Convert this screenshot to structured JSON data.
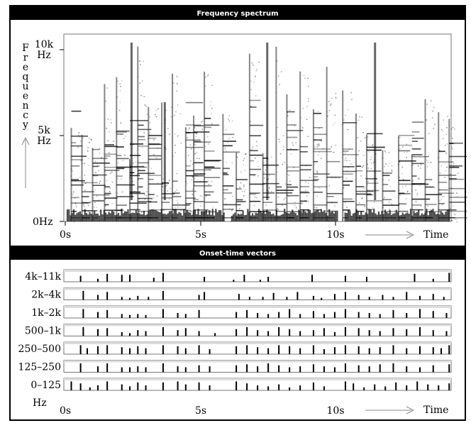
{
  "panels": {
    "spectrum_title": "Frequency spectrum",
    "onset_title": "Onset-time vectors"
  },
  "chart_data": [
    {
      "type": "heatmap",
      "title": "Frequency spectrum",
      "xlabel": "Time",
      "ylabel": "Frequency",
      "x_ticks": [
        "0s",
        "5s",
        "10s"
      ],
      "y_ticks": [
        "0Hz",
        "5k Hz",
        "10k Hz"
      ],
      "xlim": [
        0,
        14.5
      ],
      "ylim": [
        0,
        11000
      ],
      "grid": false,
      "note_onsets_s": [
        0.2,
        0.6,
        1.0,
        1.45,
        1.9,
        2.4,
        2.7,
        3.1,
        3.6,
        4.0,
        4.5,
        4.8,
        5.2,
        5.9,
        6.4,
        6.9,
        7.4,
        7.9,
        8.3,
        8.8,
        9.3,
        9.8,
        10.4,
        10.9,
        11.3,
        11.9,
        12.5,
        13.0,
        13.5,
        14.0,
        14.4
      ]
    },
    {
      "type": "bar",
      "title": "Onset-time vectors",
      "xlabel": "Time",
      "x_ticks": [
        "0s",
        "5s",
        "10s"
      ],
      "xlim": [
        0,
        14.5
      ],
      "bands": [
        "4k–11k",
        "2k–4k",
        "1k–2k",
        "500–1k",
        "250–500",
        "125–250",
        "0–125"
      ],
      "band_unit": "Hz",
      "series": [
        {
          "values": [
            [
              0.55,
              0.6
            ],
            [
              1.2,
              0.3
            ],
            [
              1.55,
              0.8
            ],
            [
              2.1,
              0.7
            ],
            [
              2.4,
              0.7
            ],
            [
              3.3,
              0.4
            ],
            [
              3.65,
              0.9
            ],
            [
              5.2,
              0.5
            ],
            [
              6.3,
              0.2
            ],
            [
              6.7,
              0.7
            ],
            [
              7.3,
              0.2
            ],
            [
              7.6,
              0.5
            ],
            [
              9.25,
              0.7
            ],
            [
              10.5,
              0.6
            ],
            [
              11.3,
              0.5
            ],
            [
              13.1,
              0.8
            ],
            [
              13.8,
              0.3
            ],
            [
              14.4,
              0.9
            ]
          ]
        },
        {
          "values": [
            [
              0.65,
              0.9
            ],
            [
              1.2,
              0.5
            ],
            [
              1.55,
              0.8
            ],
            [
              2.1,
              0.3
            ],
            [
              2.4,
              0.2
            ],
            [
              2.7,
              0.4
            ],
            [
              3.1,
              0.3
            ],
            [
              3.65,
              0.9
            ],
            [
              5.0,
              0.5
            ],
            [
              5.2,
              0.8
            ],
            [
              6.5,
              0.6
            ],
            [
              6.9,
              0.3
            ],
            [
              7.4,
              0.3
            ],
            [
              7.8,
              0.7
            ],
            [
              8.3,
              0.3
            ],
            [
              8.7,
              0.8
            ],
            [
              9.3,
              0.4
            ],
            [
              9.6,
              0.2
            ],
            [
              10.1,
              0.6
            ],
            [
              10.5,
              0.8
            ],
            [
              11.0,
              0.5
            ],
            [
              11.4,
              0.3
            ],
            [
              11.9,
              0.5
            ],
            [
              12.3,
              0.3
            ],
            [
              12.8,
              0.8
            ],
            [
              13.3,
              0.4
            ],
            [
              13.8,
              0.6
            ],
            [
              14.2,
              0.3
            ]
          ]
        },
        {
          "values": [
            [
              0.65,
              0.9
            ],
            [
              1.2,
              0.6
            ],
            [
              1.55,
              0.8
            ],
            [
              2.1,
              0.4
            ],
            [
              2.4,
              0.3
            ],
            [
              2.7,
              0.4
            ],
            [
              3.0,
              0.3
            ],
            [
              3.65,
              0.9
            ],
            [
              4.2,
              0.5
            ],
            [
              4.5,
              0.4
            ],
            [
              5.0,
              0.8
            ],
            [
              6.4,
              0.6
            ],
            [
              6.8,
              0.8
            ],
            [
              7.2,
              0.5
            ],
            [
              7.6,
              0.4
            ],
            [
              8.0,
              0.6
            ],
            [
              8.4,
              0.9
            ],
            [
              8.8,
              0.4
            ],
            [
              9.3,
              0.7
            ],
            [
              9.7,
              0.4
            ],
            [
              10.1,
              0.6
            ],
            [
              10.5,
              0.9
            ],
            [
              11.0,
              0.6
            ],
            [
              11.4,
              0.5
            ],
            [
              11.8,
              0.4
            ],
            [
              12.3,
              0.8
            ],
            [
              12.8,
              0.5
            ],
            [
              13.3,
              0.9
            ],
            [
              13.8,
              0.7
            ],
            [
              14.3,
              0.5
            ]
          ]
        },
        {
          "values": [
            [
              0.65,
              0.9
            ],
            [
              1.2,
              0.7
            ],
            [
              1.55,
              0.8
            ],
            [
              2.1,
              0.4
            ],
            [
              2.4,
              0.3
            ],
            [
              2.7,
              0.6
            ],
            [
              3.0,
              0.5
            ],
            [
              3.65,
              0.9
            ],
            [
              4.2,
              0.6
            ],
            [
              4.5,
              0.8
            ],
            [
              5.0,
              0.5
            ],
            [
              5.6,
              0.3
            ],
            [
              6.4,
              0.7
            ],
            [
              6.8,
              0.9
            ],
            [
              7.2,
              0.6
            ],
            [
              7.6,
              0.5
            ],
            [
              8.0,
              0.9
            ],
            [
              8.4,
              0.7
            ],
            [
              8.8,
              0.5
            ],
            [
              9.3,
              0.6
            ],
            [
              9.7,
              0.8
            ],
            [
              10.1,
              0.4
            ],
            [
              10.5,
              0.9
            ],
            [
              11.0,
              0.8
            ],
            [
              11.4,
              0.6
            ],
            [
              11.8,
              0.5
            ],
            [
              12.3,
              0.8
            ],
            [
              12.8,
              0.7
            ],
            [
              13.3,
              0.9
            ],
            [
              13.8,
              0.6
            ],
            [
              14.3,
              0.5
            ]
          ]
        },
        {
          "values": [
            [
              0.55,
              0.9
            ],
            [
              0.8,
              0.6
            ],
            [
              1.2,
              0.8
            ],
            [
              1.55,
              0.9
            ],
            [
              2.1,
              0.7
            ],
            [
              2.4,
              0.6
            ],
            [
              2.7,
              0.8
            ],
            [
              3.0,
              0.6
            ],
            [
              3.65,
              0.9
            ],
            [
              4.2,
              0.8
            ],
            [
              4.5,
              0.6
            ],
            [
              5.0,
              0.9
            ],
            [
              5.4,
              0.5
            ],
            [
              6.4,
              0.8
            ],
            [
              6.8,
              0.9
            ],
            [
              7.2,
              0.7
            ],
            [
              7.6,
              0.6
            ],
            [
              8.0,
              0.9
            ],
            [
              8.4,
              0.8
            ],
            [
              8.8,
              0.6
            ],
            [
              9.3,
              0.9
            ],
            [
              9.7,
              0.5
            ],
            [
              10.1,
              0.7
            ],
            [
              10.5,
              0.9
            ],
            [
              11.0,
              0.8
            ],
            [
              11.4,
              0.6
            ],
            [
              11.8,
              0.7
            ],
            [
              12.3,
              0.9
            ],
            [
              12.8,
              0.6
            ],
            [
              13.3,
              0.8
            ],
            [
              13.8,
              0.7
            ],
            [
              14.1,
              0.6
            ],
            [
              14.4,
              0.9
            ]
          ]
        },
        {
          "values": [
            [
              0.55,
              0.9
            ],
            [
              1.2,
              0.6
            ],
            [
              1.55,
              0.9
            ],
            [
              2.1,
              0.5
            ],
            [
              2.4,
              0.5
            ],
            [
              2.7,
              0.6
            ],
            [
              3.0,
              0.5
            ],
            [
              3.65,
              0.9
            ],
            [
              4.2,
              0.6
            ],
            [
              4.5,
              0.5
            ],
            [
              5.0,
              0.7
            ],
            [
              5.4,
              0.6
            ],
            [
              6.4,
              0.7
            ],
            [
              6.8,
              0.8
            ],
            [
              7.2,
              0.6
            ],
            [
              7.6,
              0.9
            ],
            [
              8.0,
              0.7
            ],
            [
              8.4,
              0.5
            ],
            [
              8.8,
              0.6
            ],
            [
              9.3,
              0.8
            ],
            [
              9.7,
              0.6
            ],
            [
              10.1,
              0.5
            ],
            [
              10.5,
              0.9
            ],
            [
              11.0,
              0.7
            ],
            [
              11.4,
              0.6
            ],
            [
              11.8,
              0.8
            ],
            [
              12.3,
              0.9
            ],
            [
              12.8,
              0.6
            ],
            [
              13.3,
              0.5
            ],
            [
              13.8,
              0.7
            ],
            [
              14.4,
              0.8
            ]
          ]
        },
        {
          "values": [
            [
              0.2,
              0.9
            ],
            [
              0.55,
              0.7
            ],
            [
              0.9,
              0.3
            ],
            [
              1.2,
              0.5
            ],
            [
              1.55,
              0.9
            ],
            [
              2.1,
              0.6
            ],
            [
              2.4,
              0.4
            ],
            [
              2.7,
              0.8
            ],
            [
              3.0,
              0.5
            ],
            [
              3.65,
              0.8
            ],
            [
              4.2,
              0.9
            ],
            [
              4.5,
              0.6
            ],
            [
              5.0,
              0.8
            ],
            [
              5.4,
              0.5
            ],
            [
              6.4,
              0.9
            ],
            [
              6.8,
              0.7
            ],
            [
              7.2,
              0.5
            ],
            [
              7.6,
              0.4
            ],
            [
              8.0,
              0.6
            ],
            [
              8.4,
              0.3
            ],
            [
              8.8,
              0.5
            ],
            [
              9.3,
              0.8
            ],
            [
              9.7,
              0.4
            ],
            [
              10.5,
              0.9
            ],
            [
              10.8,
              0.7
            ],
            [
              11.2,
              0.3
            ],
            [
              11.6,
              0.6
            ],
            [
              12.0,
              0.4
            ],
            [
              12.4,
              0.8
            ],
            [
              12.8,
              0.5
            ],
            [
              13.2,
              0.9
            ],
            [
              13.6,
              0.6
            ],
            [
              14.0,
              0.5
            ],
            [
              14.4,
              0.7
            ]
          ]
        }
      ]
    }
  ],
  "axis_text": {
    "spec_ylabel": "Frequency",
    "spec_y_top_num": "10k",
    "spec_y_top_unit": "Hz",
    "spec_y_mid_num": "5k",
    "spec_y_mid_unit": "Hz",
    "spec_y_zero": "0Hz",
    "spec_x0": "0s",
    "spec_x5": "5s",
    "spec_x10": "10s",
    "spec_time": "Time",
    "onset_hz": "Hz",
    "onset_x0": "0s",
    "onset_x5": "5s",
    "onset_x10": "10s",
    "onset_time": "Time"
  }
}
